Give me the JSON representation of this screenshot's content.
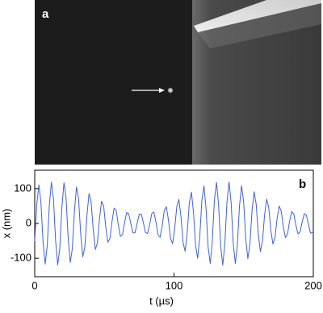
{
  "image_panel": {
    "label": "a"
  },
  "chart_data": {
    "type": "line",
    "panel_label": "b",
    "x_label": "t (µs)",
    "y_label": "x (nm)",
    "xlim": [
      0,
      200
    ],
    "ylim": [
      -153,
      153
    ],
    "xticks": [
      0,
      100,
      200
    ],
    "yticks": [
      -100,
      0,
      100
    ],
    "x": [
      0,
      1.5,
      3,
      4.5,
      6,
      7.5,
      9,
      10.5,
      12,
      13.5,
      15,
      16.5,
      18,
      19.5,
      21,
      22.5,
      24,
      25.5,
      27,
      28.5,
      30,
      31.5,
      33,
      34.5,
      36,
      37.5,
      39,
      40.5,
      42,
      43.5,
      45,
      46.5,
      48,
      49.5,
      51,
      52.5,
      54,
      55.5,
      57,
      58.5,
      60,
      61.5,
      63,
      64.5,
      66,
      67.5,
      69,
      70.5,
      72,
      73.5,
      75,
      76.5,
      78,
      79.5,
      81,
      82.5,
      84,
      85.5,
      87,
      88.5,
      90,
      91.5,
      93,
      94.5,
      96,
      97.5,
      99,
      100.5,
      102,
      103.5,
      105,
      106.5,
      108,
      109.5,
      111,
      112.5,
      114,
      115.5,
      117,
      118.5,
      120,
      121.5,
      123,
      124.5,
      126,
      127.5,
      129,
      130.5,
      132,
      133.5,
      135,
      136.5,
      138,
      139.5,
      141,
      142.5,
      144,
      145.5,
      147,
      148.5,
      150,
      151.5,
      153,
      154.5,
      156,
      157.5,
      159,
      160.5,
      162,
      163.5,
      165,
      166.5,
      168,
      169.5,
      171,
      172.5,
      174,
      175.5,
      177,
      178.5,
      180,
      181.5,
      183,
      184.5,
      186,
      187.5,
      189,
      190.5,
      192,
      193.5,
      195,
      196.5,
      198,
      199.5
    ],
    "series": [
      {
        "color": "#3d63d2",
        "values": [
          -51,
          56,
          111,
          58,
          -55,
          -117,
          -63,
          53,
          119,
          68,
          -50,
          -119,
          -71,
          46,
          117,
          73,
          -41,
          -112,
          -72,
          35,
          105,
          70,
          -30,
          -96,
          -67,
          24,
          86,
          62,
          -18,
          -75,
          -56,
          14,
          64,
          50,
          -10,
          -54,
          -43,
          6,
          44,
          37,
          -4,
          -37,
          -32,
          2,
          31,
          28,
          -1,
          -27,
          -27,
          0,
          26,
          27,
          2,
          -26,
          -29,
          -3,
          28,
          33,
          5,
          -32,
          -40,
          -7,
          37,
          48,
          10,
          -43,
          -58,
          -14,
          49,
          69,
          19,
          -55,
          -80,
          -25,
          60,
          90,
          31,
          -64,
          -100,
          -37,
          67,
          108,
          43,
          -68,
          -115,
          -49,
          67,
          118,
          53,
          -65,
          -120,
          -57,
          61,
          119,
          60,
          -56,
          -115,
          -61,
          50,
          109,
          61,
          -44,
          -101,
          -59,
          37,
          91,
          55,
          -30,
          -81,
          -51,
          24,
          70,
          46,
          -19,
          -59,
          -40,
          14,
          50,
          35,
          -10,
          -41,
          -30,
          7,
          34,
          27,
          -5,
          -30,
          -25,
          4,
          28,
          24,
          -3,
          -28,
          -26
        ]
      }
    ]
  }
}
